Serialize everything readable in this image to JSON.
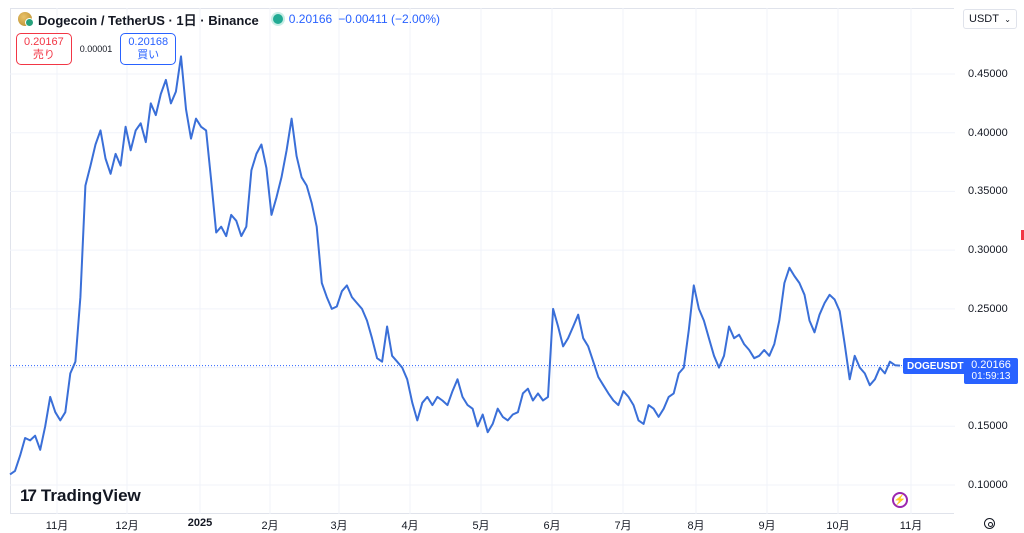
{
  "header": {
    "title": "Dogecoin / TetherUS · 1日 · Binance",
    "price": "0.20166",
    "change": "−0.00411 (−2.00%)",
    "icon": "dogecoin-icon"
  },
  "trade": {
    "sell_price": "0.20167",
    "sell_label": "売り",
    "spread": "0.00001",
    "buy_price": "0.20168",
    "buy_label": "買い"
  },
  "currency_select": {
    "value": "USDT"
  },
  "price_tag": {
    "symbol": "DOGEUSDT",
    "price": "0.20166",
    "countdown": "01:59:13"
  },
  "branding": {
    "logo_text": "TradingView"
  },
  "colors": {
    "line": "#3a6fd8",
    "accent": "#2962ff",
    "sell": "#f23645",
    "grid": "#f0f3fa"
  },
  "chart_data": {
    "type": "line",
    "y_ticks": [
      "0.10000",
      "0.15000",
      "0.20000",
      "0.25000",
      "0.30000",
      "0.35000",
      "0.40000",
      "0.45000"
    ],
    "x_ticks": [
      "11月",
      "12月",
      "2025",
      "2月",
      "3月",
      "4月",
      "5月",
      "6月",
      "7月",
      "8月",
      "9月",
      "10月",
      "11月"
    ],
    "ylim": [
      0.08,
      0.47
    ],
    "current_value": 0.20166,
    "series": [
      {
        "values": [
          0.109,
          0.112,
          0.125,
          0.14,
          0.138,
          0.142,
          0.13,
          0.15,
          0.175,
          0.162,
          0.155,
          0.162,
          0.195,
          0.205,
          0.26,
          0.355,
          0.372,
          0.39,
          0.402,
          0.378,
          0.365,
          0.382,
          0.372,
          0.405,
          0.385,
          0.402,
          0.408,
          0.392,
          0.425,
          0.415,
          0.433,
          0.445,
          0.425,
          0.435,
          0.465,
          0.42,
          0.395,
          0.412,
          0.405,
          0.402,
          0.36,
          0.315,
          0.32,
          0.312,
          0.33,
          0.325,
          0.312,
          0.32,
          0.368,
          0.382,
          0.39,
          0.37,
          0.33,
          0.345,
          0.362,
          0.385,
          0.412,
          0.38,
          0.362,
          0.355,
          0.34,
          0.32,
          0.272,
          0.26,
          0.25,
          0.252,
          0.265,
          0.27,
          0.26,
          0.255,
          0.25,
          0.24,
          0.225,
          0.208,
          0.205,
          0.235,
          0.21,
          0.205,
          0.2,
          0.19,
          0.17,
          0.155,
          0.17,
          0.175,
          0.168,
          0.175,
          0.172,
          0.168,
          0.18,
          0.19,
          0.175,
          0.168,
          0.165,
          0.15,
          0.16,
          0.145,
          0.152,
          0.165,
          0.158,
          0.155,
          0.16,
          0.162,
          0.178,
          0.182,
          0.172,
          0.178,
          0.172,
          0.175,
          0.25,
          0.235,
          0.218,
          0.225,
          0.235,
          0.245,
          0.225,
          0.218,
          0.205,
          0.192,
          0.185,
          0.178,
          0.172,
          0.168,
          0.18,
          0.175,
          0.168,
          0.155,
          0.152,
          0.168,
          0.165,
          0.158,
          0.165,
          0.175,
          0.178,
          0.195,
          0.2,
          0.232,
          0.27,
          0.25,
          0.24,
          0.225,
          0.21,
          0.2,
          0.21,
          0.235,
          0.225,
          0.228,
          0.22,
          0.215,
          0.208,
          0.21,
          0.215,
          0.21,
          0.22,
          0.24,
          0.272,
          0.285,
          0.278,
          0.272,
          0.262,
          0.24,
          0.23,
          0.245,
          0.255,
          0.262,
          0.258,
          0.248,
          0.22,
          0.19,
          0.21,
          0.2,
          0.195,
          0.185,
          0.19,
          0.2,
          0.195,
          0.205,
          0.202,
          0.20166
        ]
      }
    ]
  }
}
